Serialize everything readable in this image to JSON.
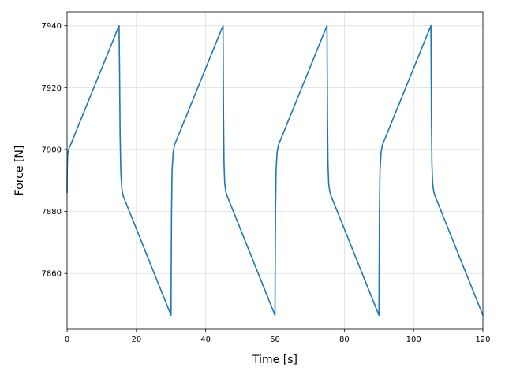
{
  "chart_data": {
    "type": "line",
    "title": "",
    "xlabel": "Time [s]",
    "ylabel": "Force [N]",
    "xlim": [
      0,
      120
    ],
    "ylim": [
      7842,
      7944.5
    ],
    "grid": true,
    "legend": "none",
    "colors": {
      "line": "#1f77b4",
      "grid": "#dddddd",
      "axes": "#000000"
    },
    "xticks": [
      {
        "value": 0,
        "label": "0"
      },
      {
        "value": 20,
        "label": "20"
      },
      {
        "value": 40,
        "label": "40"
      },
      {
        "value": 60,
        "label": "60"
      },
      {
        "value": 80,
        "label": "80"
      },
      {
        "value": 100,
        "label": "100"
      },
      {
        "value": 120,
        "label": "120"
      }
    ],
    "yticks": [
      {
        "value": 7860,
        "label": "7860"
      },
      {
        "value": 7880,
        "label": "7880"
      },
      {
        "value": 7900,
        "label": "7900"
      },
      {
        "value": 7920,
        "label": "7920"
      },
      {
        "value": 7940,
        "label": "7940"
      }
    ],
    "series": [
      {
        "x": [
          0,
          0.05,
          0.15,
          0.3,
          0.6,
          1.0,
          15.0,
          15.15,
          15.3,
          15.5,
          15.8,
          16.2,
          30.0,
          30.05,
          30.15,
          30.3,
          30.6,
          31.0,
          45.0,
          45.15,
          45.3,
          45.5,
          45.8,
          46.2,
          60.0,
          60.05,
          60.15,
          60.3,
          60.6,
          61.0,
          75.0,
          75.15,
          75.3,
          75.5,
          75.8,
          76.2,
          90.0,
          90.05,
          90.15,
          90.3,
          90.6,
          91.0,
          105.0,
          105.15,
          105.3,
          105.5,
          105.8,
          106.2,
          120.0
        ],
        "y": [
          7886,
          7894,
          7898,
          7899.5,
          7900.5,
          7901.5,
          7940,
          7925,
          7905,
          7893,
          7887.5,
          7885,
          7846.5,
          7860,
          7880,
          7893,
          7899,
          7901.5,
          7940,
          7910,
          7895,
          7889,
          7886.5,
          7885,
          7846.5,
          7860,
          7880,
          7893,
          7899,
          7901.5,
          7940,
          7910,
          7895,
          7889,
          7886.5,
          7885,
          7846.5,
          7860,
          7880,
          7893,
          7899,
          7901.5,
          7940,
          7910,
          7895,
          7889,
          7886.5,
          7885,
          7846.5
        ]
      }
    ]
  }
}
